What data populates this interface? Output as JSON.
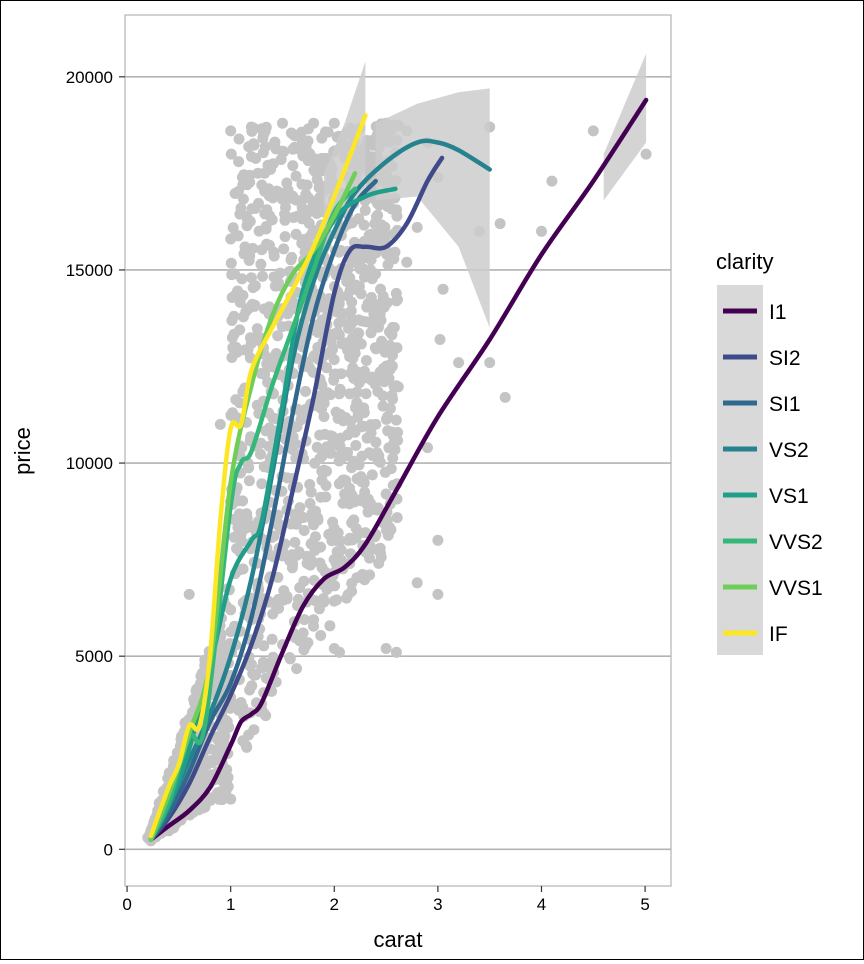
{
  "chart_data": {
    "type": "scatter",
    "xlabel": "carat",
    "ylabel": "price",
    "xlim": [
      -0.02,
      5.25
    ],
    "ylim": [
      -950,
      21600
    ],
    "xticks": [
      0,
      1,
      2,
      3,
      4,
      5
    ],
    "yticks": [
      0,
      5000,
      10000,
      15000,
      20000
    ],
    "grid": {
      "horizontal": true,
      "vertical": false
    },
    "point_color": "#c4c4c4",
    "ribbon_color": "#cccccc",
    "legend": {
      "title": "clarity",
      "placement": "right"
    },
    "scatter_points": [
      [
        0.3,
        400
      ],
      [
        0.31,
        1200
      ],
      [
        0.4,
        900
      ],
      [
        0.5,
        1600
      ],
      [
        0.7,
        2100
      ],
      [
        0.8,
        2600
      ],
      [
        0.9,
        3200
      ],
      [
        1.0,
        1300
      ],
      [
        1.0,
        4500
      ],
      [
        1.01,
        5200
      ],
      [
        1.1,
        3800
      ],
      [
        1.2,
        6000
      ],
      [
        1.3,
        6500
      ],
      [
        1.5,
        7600
      ],
      [
        0.6,
        6600
      ],
      [
        1.6,
        9600
      ],
      [
        1.8,
        8400
      ],
      [
        2.0,
        12300
      ],
      [
        2.2,
        14500
      ],
      [
        2.5,
        5200
      ],
      [
        2.6,
        5100
      ],
      [
        2.8,
        6900
      ],
      [
        3.0,
        6600
      ],
      [
        3.0,
        8000
      ],
      [
        3.2,
        12600
      ],
      [
        3.02,
        13200
      ],
      [
        3.5,
        12600
      ],
      [
        3.65,
        11700
      ],
      [
        3.4,
        16000
      ],
      [
        3.6,
        16200
      ],
      [
        3.5,
        18700
      ],
      [
        4.0,
        16000
      ],
      [
        4.1,
        17300
      ],
      [
        4.5,
        18600
      ],
      [
        5.01,
        18000
      ],
      [
        1.0,
        18600
      ],
      [
        1.2,
        18700
      ],
      [
        1.5,
        18800
      ],
      [
        1.8,
        18800
      ],
      [
        2.0,
        18800
      ],
      [
        2.5,
        18800
      ],
      [
        2.7,
        18600
      ],
      [
        1.0,
        15800
      ],
      [
        1.1,
        16600
      ],
      [
        1.3,
        17200
      ],
      [
        1.6,
        17700
      ],
      [
        2.1,
        17900
      ],
      [
        2.4,
        17300
      ],
      [
        2.8,
        16100
      ],
      [
        1.0,
        9000
      ],
      [
        1.05,
        13000
      ],
      [
        1.5,
        14000
      ],
      [
        1.7,
        12500
      ],
      [
        2.2,
        10800
      ],
      [
        2.4,
        11000
      ],
      [
        2.6,
        14200
      ],
      [
        0.9,
        11000
      ],
      [
        1.0,
        6200
      ],
      [
        1.2,
        14800
      ],
      [
        1.4,
        11800
      ],
      [
        1.9,
        16500
      ],
      [
        2.3,
        8200
      ],
      [
        2.5,
        9200
      ],
      [
        0.2,
        300
      ],
      [
        0.25,
        600
      ],
      [
        0.35,
        1500
      ],
      [
        0.45,
        2300
      ],
      [
        0.55,
        2000
      ],
      [
        0.65,
        3800
      ],
      [
        0.75,
        4900
      ],
      [
        1.3,
        3600
      ],
      [
        1.5,
        5300
      ],
      [
        1.7,
        5600
      ],
      [
        1.9,
        6400
      ],
      [
        2.05,
        5100
      ],
      [
        2.15,
        7400
      ],
      [
        2.3,
        7700
      ],
      [
        2.0,
        5200
      ],
      [
        2.1,
        9200
      ],
      [
        2.2,
        13000
      ],
      [
        2.4,
        15600
      ],
      [
        2.6,
        12000
      ],
      [
        2.7,
        15200
      ],
      [
        2.9,
        10400
      ],
      [
        3.0,
        17400
      ],
      [
        3.05,
        14500
      ],
      [
        2.9,
        18300
      ],
      [
        2.5,
        16700
      ],
      [
        2.3,
        18200
      ],
      [
        1.9,
        17600
      ],
      [
        1.75,
        15600
      ]
    ],
    "series": [
      {
        "name": "I1",
        "color": "#440154",
        "points": [
          [
            0.23,
            250
          ],
          [
            0.4,
            600
          ],
          [
            0.6,
            1000
          ],
          [
            0.8,
            1600
          ],
          [
            1.0,
            2700
          ],
          [
            1.1,
            3300
          ],
          [
            1.2,
            3500
          ],
          [
            1.3,
            3800
          ],
          [
            1.5,
            5100
          ],
          [
            1.7,
            6300
          ],
          [
            1.9,
            7000
          ],
          [
            2.1,
            7300
          ],
          [
            2.3,
            7900
          ],
          [
            2.6,
            9300
          ],
          [
            3.0,
            11200
          ],
          [
            3.5,
            13200
          ],
          [
            4.0,
            15400
          ],
          [
            4.5,
            17300
          ],
          [
            5.01,
            19400
          ]
        ],
        "ribbon_upper": [
          [
            4.6,
            18000
          ],
          [
            5.01,
            20600
          ]
        ],
        "ribbon_lower": [
          [
            4.6,
            16800
          ],
          [
            5.01,
            18300
          ]
        ]
      },
      {
        "name": "SI2",
        "color": "#3e4a89",
        "points": [
          [
            0.23,
            250
          ],
          [
            0.4,
            800
          ],
          [
            0.6,
            1700
          ],
          [
            0.8,
            2900
          ],
          [
            1.0,
            4000
          ],
          [
            1.2,
            5300
          ],
          [
            1.4,
            7000
          ],
          [
            1.6,
            9300
          ],
          [
            1.8,
            11700
          ],
          [
            2.0,
            14400
          ],
          [
            2.15,
            15500
          ],
          [
            2.3,
            15600
          ],
          [
            2.5,
            15600
          ],
          [
            2.7,
            16200
          ],
          [
            2.9,
            17300
          ],
          [
            3.04,
            17900
          ]
        ]
      },
      {
        "name": "SI1",
        "color": "#31688e",
        "points": [
          [
            0.23,
            250
          ],
          [
            0.4,
            900
          ],
          [
            0.6,
            2000
          ],
          [
            0.8,
            3300
          ],
          [
            1.0,
            4300
          ],
          [
            1.2,
            6000
          ],
          [
            1.4,
            8500
          ],
          [
            1.6,
            11300
          ],
          [
            1.8,
            13800
          ],
          [
            2.0,
            15500
          ],
          [
            2.2,
            16700
          ],
          [
            2.4,
            17300
          ]
        ]
      },
      {
        "name": "VS2",
        "color": "#26828e",
        "points": [
          [
            0.23,
            250
          ],
          [
            0.4,
            1100
          ],
          [
            0.6,
            2300
          ],
          [
            0.8,
            3500
          ],
          [
            1.0,
            5000
          ],
          [
            1.2,
            7000
          ],
          [
            1.4,
            9700
          ],
          [
            1.6,
            12700
          ],
          [
            1.8,
            14700
          ],
          [
            2.0,
            16000
          ],
          [
            2.2,
            17000
          ],
          [
            2.5,
            17800
          ],
          [
            2.8,
            18300
          ],
          [
            3.0,
            18300
          ],
          [
            3.2,
            18100
          ],
          [
            3.5,
            17600
          ]
        ],
        "ribbon_upper": [
          [
            2.4,
            18800
          ],
          [
            2.8,
            19300
          ],
          [
            3.2,
            19600
          ],
          [
            3.5,
            19700
          ]
        ],
        "ribbon_lower": [
          [
            2.4,
            16800
          ],
          [
            2.8,
            16900
          ],
          [
            3.2,
            15600
          ],
          [
            3.5,
            13500
          ]
        ]
      },
      {
        "name": "VS1",
        "color": "#1f9e89",
        "points": [
          [
            0.23,
            250
          ],
          [
            0.4,
            1100
          ],
          [
            0.6,
            2600
          ],
          [
            0.8,
            4700
          ],
          [
            1.0,
            7000
          ],
          [
            1.2,
            8000
          ],
          [
            1.3,
            8500
          ],
          [
            1.5,
            11500
          ],
          [
            1.7,
            14500
          ],
          [
            2.0,
            16300
          ],
          [
            2.3,
            16900
          ],
          [
            2.59,
            17100
          ]
        ]
      },
      {
        "name": "VVS2",
        "color": "#35b779",
        "points": [
          [
            0.23,
            250
          ],
          [
            0.4,
            1200
          ],
          [
            0.6,
            2900
          ],
          [
            0.75,
            3200
          ],
          [
            1.0,
            8900
          ],
          [
            1.1,
            10000
          ],
          [
            1.2,
            10300
          ],
          [
            1.4,
            12000
          ],
          [
            1.6,
            13500
          ],
          [
            1.8,
            15000
          ],
          [
            2.0,
            16500
          ],
          [
            2.2,
            17100
          ]
        ]
      },
      {
        "name": "VVS1",
        "color": "#6ece58",
        "points": [
          [
            0.23,
            250
          ],
          [
            0.4,
            1400
          ],
          [
            0.6,
            3000
          ],
          [
            0.8,
            4800
          ],
          [
            1.0,
            9500
          ],
          [
            1.2,
            12000
          ],
          [
            1.4,
            13800
          ],
          [
            1.6,
            14900
          ],
          [
            1.8,
            15500
          ],
          [
            2.0,
            16400
          ],
          [
            2.2,
            17500
          ]
        ]
      },
      {
        "name": "IF",
        "color": "#fde725",
        "points": [
          [
            0.23,
            350
          ],
          [
            0.4,
            1600
          ],
          [
            0.5,
            2200
          ],
          [
            0.6,
            3200
          ],
          [
            0.7,
            3200
          ],
          [
            0.8,
            5000
          ],
          [
            0.9,
            8500
          ],
          [
            1.0,
            10900
          ],
          [
            1.1,
            11000
          ],
          [
            1.2,
            12400
          ],
          [
            1.4,
            13500
          ],
          [
            1.6,
            14500
          ],
          [
            1.8,
            15600
          ],
          [
            2.0,
            16900
          ],
          [
            2.3,
            19000
          ]
        ],
        "ribbon_upper": [
          [
            1.9,
            17500
          ],
          [
            2.1,
            18800
          ],
          [
            2.3,
            20400
          ]
        ],
        "ribbon_lower": [
          [
            1.9,
            16000
          ],
          [
            2.1,
            16400
          ],
          [
            2.3,
            16900
          ]
        ]
      }
    ]
  }
}
